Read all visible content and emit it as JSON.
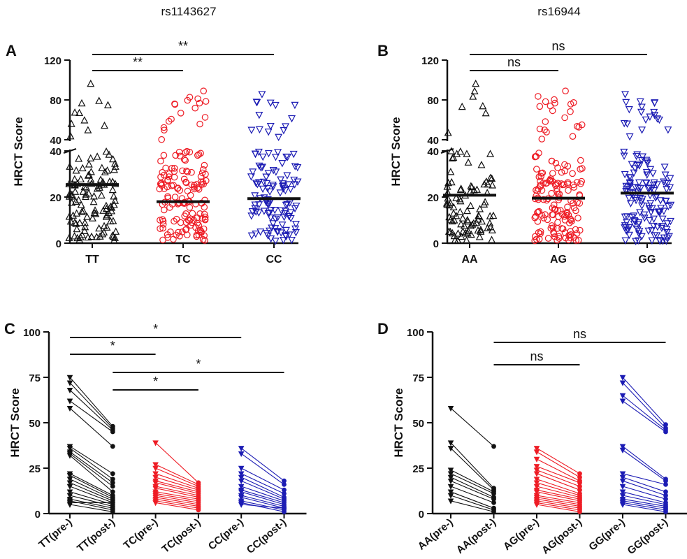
{
  "colors": {
    "black": "#111111",
    "red": "#ee1c25",
    "blue": "#1c1cb4"
  },
  "chart_data": [
    {
      "panel": "A",
      "type": "scatter",
      "title": "rs1143627",
      "ylabel": "HRCT Score",
      "categories": [
        "TT",
        "TC",
        "CC"
      ],
      "yaxis": {
        "type": "broken",
        "lower_range": [
          0,
          40
        ],
        "lower_ticks": [
          0,
          20,
          40
        ],
        "upper_range": [
          40,
          120
        ],
        "upper_ticks": [
          40,
          80,
          120
        ]
      },
      "markers": [
        "triangle-up",
        "circle",
        "triangle-down"
      ],
      "series_colors": [
        "#111111",
        "#ee1c25",
        "#1c1cb4"
      ],
      "means": [
        25.4,
        18.0,
        19.3
      ],
      "counts": [
        120,
        155,
        120
      ],
      "max_values": [
        96,
        89,
        86
      ],
      "significance": [
        {
          "from": 0,
          "to": 1,
          "label": "**"
        },
        {
          "from": 0,
          "to": 2,
          "label": "**"
        }
      ]
    },
    {
      "panel": "B",
      "type": "scatter",
      "title": "rs16944",
      "ylabel": "HRCT Score",
      "categories": [
        "AA",
        "AG",
        "GG"
      ],
      "yaxis": {
        "type": "broken",
        "lower_range": [
          0,
          40
        ],
        "lower_ticks": [
          0,
          20,
          40
        ],
        "upper_range": [
          40,
          120
        ],
        "upper_ticks": [
          40,
          80,
          120
        ]
      },
      "markers": [
        "triangle-up",
        "circle",
        "triangle-down"
      ],
      "series_colors": [
        "#111111",
        "#ee1c25",
        "#1c1cb4"
      ],
      "means": [
        20.8,
        19.5,
        21.7
      ],
      "counts": [
        95,
        160,
        150
      ],
      "max_values": [
        96,
        89,
        86
      ],
      "significance": [
        {
          "from": 0,
          "to": 1,
          "label": "ns"
        },
        {
          "from": 0,
          "to": 2,
          "label": "ns"
        }
      ]
    },
    {
      "panel": "C",
      "type": "line",
      "ylabel": "HRCT Score",
      "categories": [
        "TT(pre-)",
        "TT(post-)",
        "TC(pre-)",
        "TC(post-)",
        "CC(pre-)",
        "CC(post-)"
      ],
      "ylim": [
        0,
        100
      ],
      "yticks": [
        0,
        25,
        50,
        75,
        100
      ],
      "groups": [
        {
          "color": "#111111",
          "pairs": [
            [
              75,
              48
            ],
            [
              72,
              47
            ],
            [
              68,
              46
            ],
            [
              62,
              45
            ],
            [
              58,
              37
            ],
            [
              37,
              22
            ],
            [
              36,
              19
            ],
            [
              34,
              17
            ],
            [
              33,
              15
            ],
            [
              32,
              12
            ],
            [
              22,
              10
            ],
            [
              21,
              9
            ],
            [
              19,
              8
            ],
            [
              17,
              7
            ],
            [
              15,
              6
            ],
            [
              12,
              5
            ],
            [
              10,
              4
            ],
            [
              8,
              3
            ],
            [
              7,
              2
            ],
            [
              6,
              6
            ],
            [
              5,
              1
            ]
          ]
        },
        {
          "color": "#ee1c25",
          "pairs": [
            [
              39,
              17
            ],
            [
              27,
              16
            ],
            [
              25,
              15
            ],
            [
              22,
              14
            ],
            [
              20,
              13
            ],
            [
              18,
              12
            ],
            [
              17,
              11
            ],
            [
              15,
              10
            ],
            [
              14,
              9
            ],
            [
              12,
              8
            ],
            [
              11,
              7
            ],
            [
              10,
              6
            ],
            [
              9,
              5
            ],
            [
              8,
              4
            ],
            [
              7,
              3
            ],
            [
              6,
              2
            ]
          ]
        },
        {
          "color": "#1c1cb4",
          "pairs": [
            [
              36,
              18
            ],
            [
              33,
              16
            ],
            [
              25,
              13
            ],
            [
              22,
              11
            ],
            [
              20,
              9
            ],
            [
              18,
              8
            ],
            [
              15,
              7
            ],
            [
              13,
              6
            ],
            [
              12,
              5
            ],
            [
              10,
              4
            ],
            [
              9,
              3
            ],
            [
              7,
              2
            ],
            [
              6,
              1
            ],
            [
              5,
              3
            ]
          ]
        }
      ],
      "significance": [
        {
          "from": 0,
          "to": 2,
          "label": "*"
        },
        {
          "from": 0,
          "to": 4,
          "label": "*"
        },
        {
          "from": 1,
          "to": 3,
          "label": "*"
        },
        {
          "from": 1,
          "to": 5,
          "label": "*"
        }
      ]
    },
    {
      "panel": "D",
      "type": "line",
      "ylabel": "HRCT Score",
      "categories": [
        "AA(pre-)",
        "AA(post-)",
        "AG(pre-)",
        "AG(post-)",
        "GG(pre-)",
        "GG(post-)"
      ],
      "ylim": [
        0,
        100
      ],
      "yticks": [
        0,
        25,
        50,
        75,
        100
      ],
      "groups": [
        {
          "color": "#111111",
          "pairs": [
            [
              58,
              37
            ],
            [
              39,
              14
            ],
            [
              36,
              13
            ],
            [
              24,
              12
            ],
            [
              22,
              11
            ],
            [
              20,
              9
            ],
            [
              18,
              8
            ],
            [
              15,
              6
            ],
            [
              12,
              3
            ],
            [
              10,
              2
            ],
            [
              7,
              1
            ]
          ]
        },
        {
          "color": "#ee1c25",
          "pairs": [
            [
              36,
              22
            ],
            [
              34,
              20
            ],
            [
              30,
              18
            ],
            [
              26,
              17
            ],
            [
              24,
              15
            ],
            [
              22,
              13
            ],
            [
              19,
              11
            ],
            [
              17,
              10
            ],
            [
              15,
              9
            ],
            [
              13,
              8
            ],
            [
              12,
              7
            ],
            [
              10,
              6
            ],
            [
              9,
              5
            ],
            [
              8,
              4
            ],
            [
              7,
              3
            ],
            [
              6,
              2
            ],
            [
              5,
              1
            ]
          ]
        },
        {
          "color": "#1c1cb4",
          "pairs": [
            [
              75,
              49
            ],
            [
              72,
              47
            ],
            [
              65,
              46
            ],
            [
              62,
              45
            ],
            [
              37,
              19
            ],
            [
              35,
              18
            ],
            [
              22,
              16
            ],
            [
              20,
              12
            ],
            [
              18,
              10
            ],
            [
              15,
              8
            ],
            [
              12,
              6
            ],
            [
              10,
              5
            ],
            [
              8,
              4
            ],
            [
              7,
              3
            ],
            [
              6,
              2
            ],
            [
              5,
              1
            ]
          ]
        }
      ],
      "significance": [
        {
          "from": 1,
          "to": 3,
          "label": "ns"
        },
        {
          "from": 1,
          "to": 5,
          "label": "ns"
        }
      ]
    }
  ]
}
